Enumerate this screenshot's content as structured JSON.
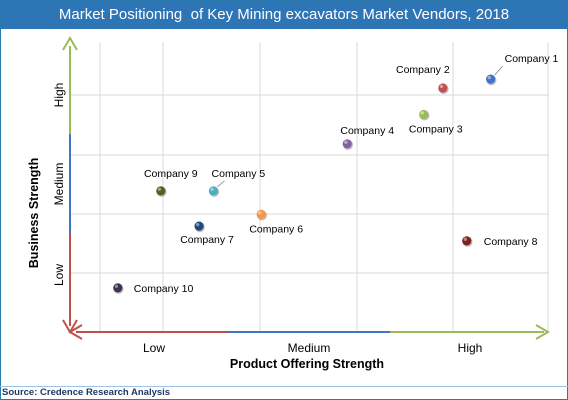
{
  "title": "Market Positioning  of Key Mining excavators Market Vendors, 2018",
  "source": "Source: Credence Research Analysis",
  "chart_data": {
    "type": "scatter",
    "title": "Market Positioning  of Key Mining excavators Market Vendors, 2018",
    "xlabel": "Product Offering Strength",
    "ylabel": "Business Strength",
    "x_ticks": [
      "Low",
      "Medium",
      "High"
    ],
    "y_ticks": [
      "Low",
      "Medium",
      "High"
    ],
    "xlim": [
      0,
      100
    ],
    "ylim": [
      0,
      100
    ],
    "grid": true,
    "points": [
      {
        "label": "Company 1",
        "x": 88,
        "y": 86,
        "color": "#4472c4"
      },
      {
        "label": "Company 2",
        "x": 78,
        "y": 83,
        "color": "#c0504d"
      },
      {
        "label": "Company 3",
        "x": 74,
        "y": 74,
        "color": "#9bbb59"
      },
      {
        "label": "Company 4",
        "x": 58,
        "y": 64,
        "color": "#8064a2"
      },
      {
        "label": "Company 5",
        "x": 30,
        "y": 48,
        "color": "#4bacc6"
      },
      {
        "label": "Company 6",
        "x": 40,
        "y": 40,
        "color": "#f79646"
      },
      {
        "label": "Company 7",
        "x": 27,
        "y": 36,
        "color": "#1f497d"
      },
      {
        "label": "Company 8",
        "x": 83,
        "y": 31,
        "color": "#7f1f1f"
      },
      {
        "label": "Company 9",
        "x": 19,
        "y": 48,
        "color": "#4f6228"
      },
      {
        "label": "Company 10",
        "x": 10,
        "y": 15,
        "color": "#403151"
      }
    ]
  }
}
